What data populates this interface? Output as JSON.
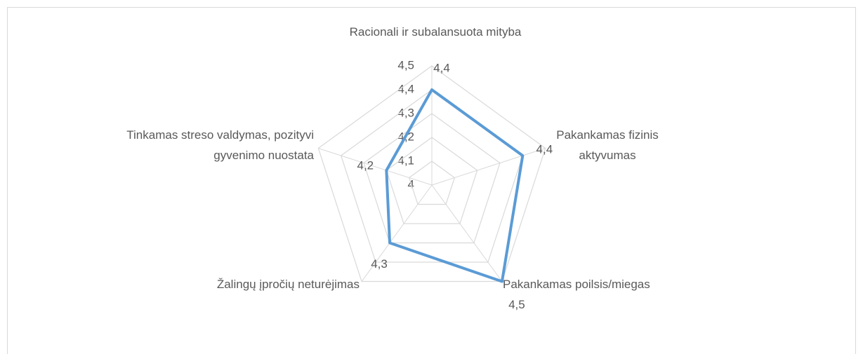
{
  "chart_data": {
    "type": "radar",
    "categories": [
      "Racionali ir subalansuota mityba",
      "Pakankamas fizinis aktyvumas",
      "Pakankamas poilsis/miegas",
      "Žalingų įpročių neturėjimas",
      "Tinkamas streso valdymas, pozityvi gyvenimo nuostata"
    ],
    "values": [
      4.4,
      4.4,
      4.5,
      4.3,
      4.2
    ],
    "value_labels": [
      "4,4",
      "4,4",
      "4,5",
      "4,3",
      "4,2"
    ],
    "color": "#5b9bd5",
    "ylim": [
      4,
      4.5
    ],
    "yticks": [
      4,
      {
        "value": 4.1,
        "label": "4,1"
      },
      {
        "value": 4.2,
        "label": "4,2"
      },
      {
        "value": 4.3,
        "label": "4,3"
      },
      {
        "value": 4.4,
        "label": "4,4"
      },
      {
        "value": 4.5,
        "label": "4,5"
      }
    ],
    "grid": true
  }
}
